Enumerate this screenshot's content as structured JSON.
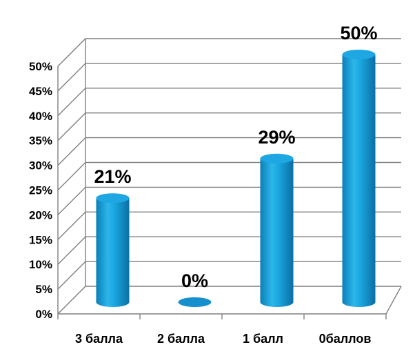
{
  "chart_data": {
    "type": "bar",
    "style": "3d-cylinder",
    "categories": [
      "3 балла",
      "2 балла",
      "1 балл",
      "0баллов"
    ],
    "values": [
      21,
      0,
      29,
      50
    ],
    "data_labels": [
      "21%",
      "0%",
      "29%",
      "50%"
    ],
    "y_ticks": [
      "0%",
      "5%",
      "10%",
      "15%",
      "20%",
      "25%",
      "30%",
      "35%",
      "40%",
      "45%",
      "50%"
    ],
    "ylim": [
      0,
      50
    ],
    "grid": true,
    "bar_color": "#1aa0dc"
  }
}
